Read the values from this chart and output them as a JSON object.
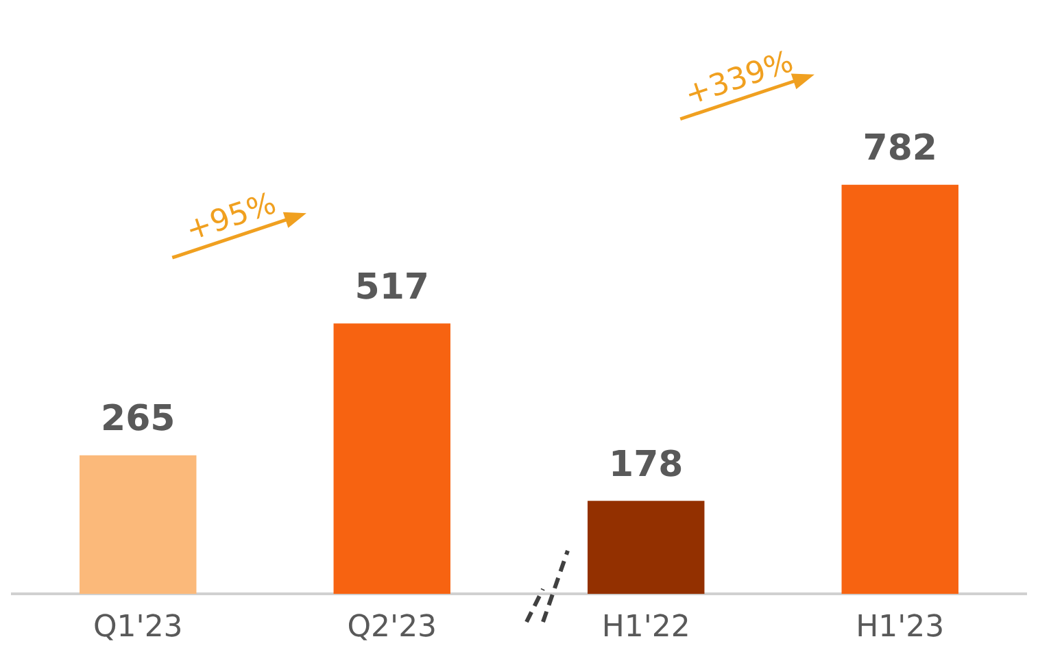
{
  "chart_data": {
    "type": "bar",
    "categories": [
      "Q1'23",
      "Q2'23",
      "H1'22",
      "H1'23"
    ],
    "values": [
      265,
      517,
      178,
      782
    ],
    "colors": [
      "#fbb97a",
      "#f76311",
      "#933000",
      "#f76311"
    ],
    "data_labels": true,
    "annotations": [
      "+95%",
      "+339%"
    ],
    "grid": false,
    "legend": false
  }
}
